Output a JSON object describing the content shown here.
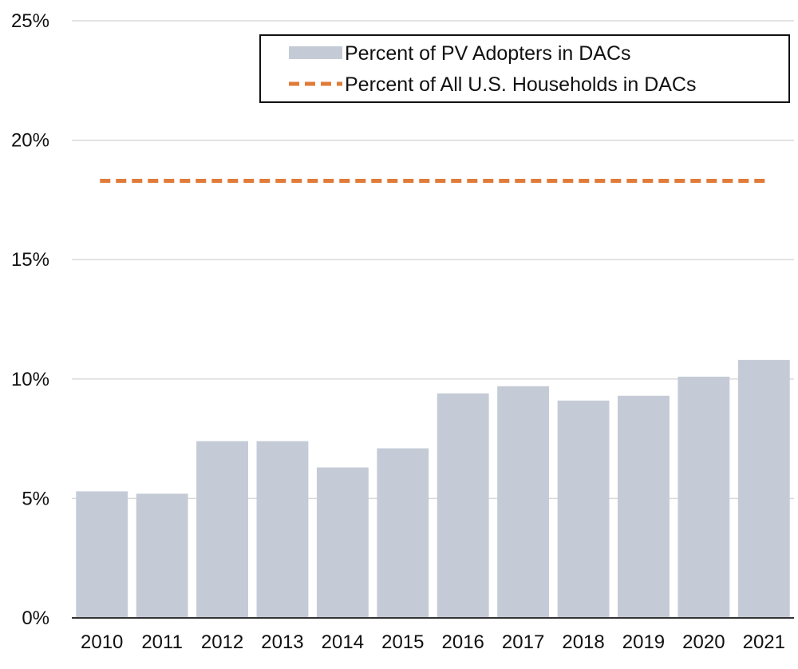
{
  "chart_data": {
    "type": "bar",
    "categories": [
      "2010",
      "2011",
      "2012",
      "2013",
      "2014",
      "2015",
      "2016",
      "2017",
      "2018",
      "2019",
      "2020",
      "2021"
    ],
    "series": [
      {
        "name": "Percent of PV Adopters in DACs",
        "type": "bar",
        "color": "#c5cbd6",
        "values": [
          5.3,
          5.2,
          7.4,
          7.4,
          6.3,
          7.1,
          9.4,
          9.7,
          9.1,
          9.3,
          10.1,
          10.8
        ]
      },
      {
        "name": "Percent of All U.S. Households in DACs",
        "type": "reference-line",
        "style": "dashed",
        "color": "#e07b39",
        "value": 18.3
      }
    ],
    "ylim": [
      0,
      25
    ],
    "yticks": [
      "0%",
      "5%",
      "10%",
      "15%",
      "20%",
      "25%"
    ],
    "ytick_values": [
      0,
      5,
      10,
      15,
      20,
      25
    ],
    "grid": true,
    "legend_position": "top-right",
    "title": "",
    "xlabel": "",
    "ylabel": ""
  }
}
